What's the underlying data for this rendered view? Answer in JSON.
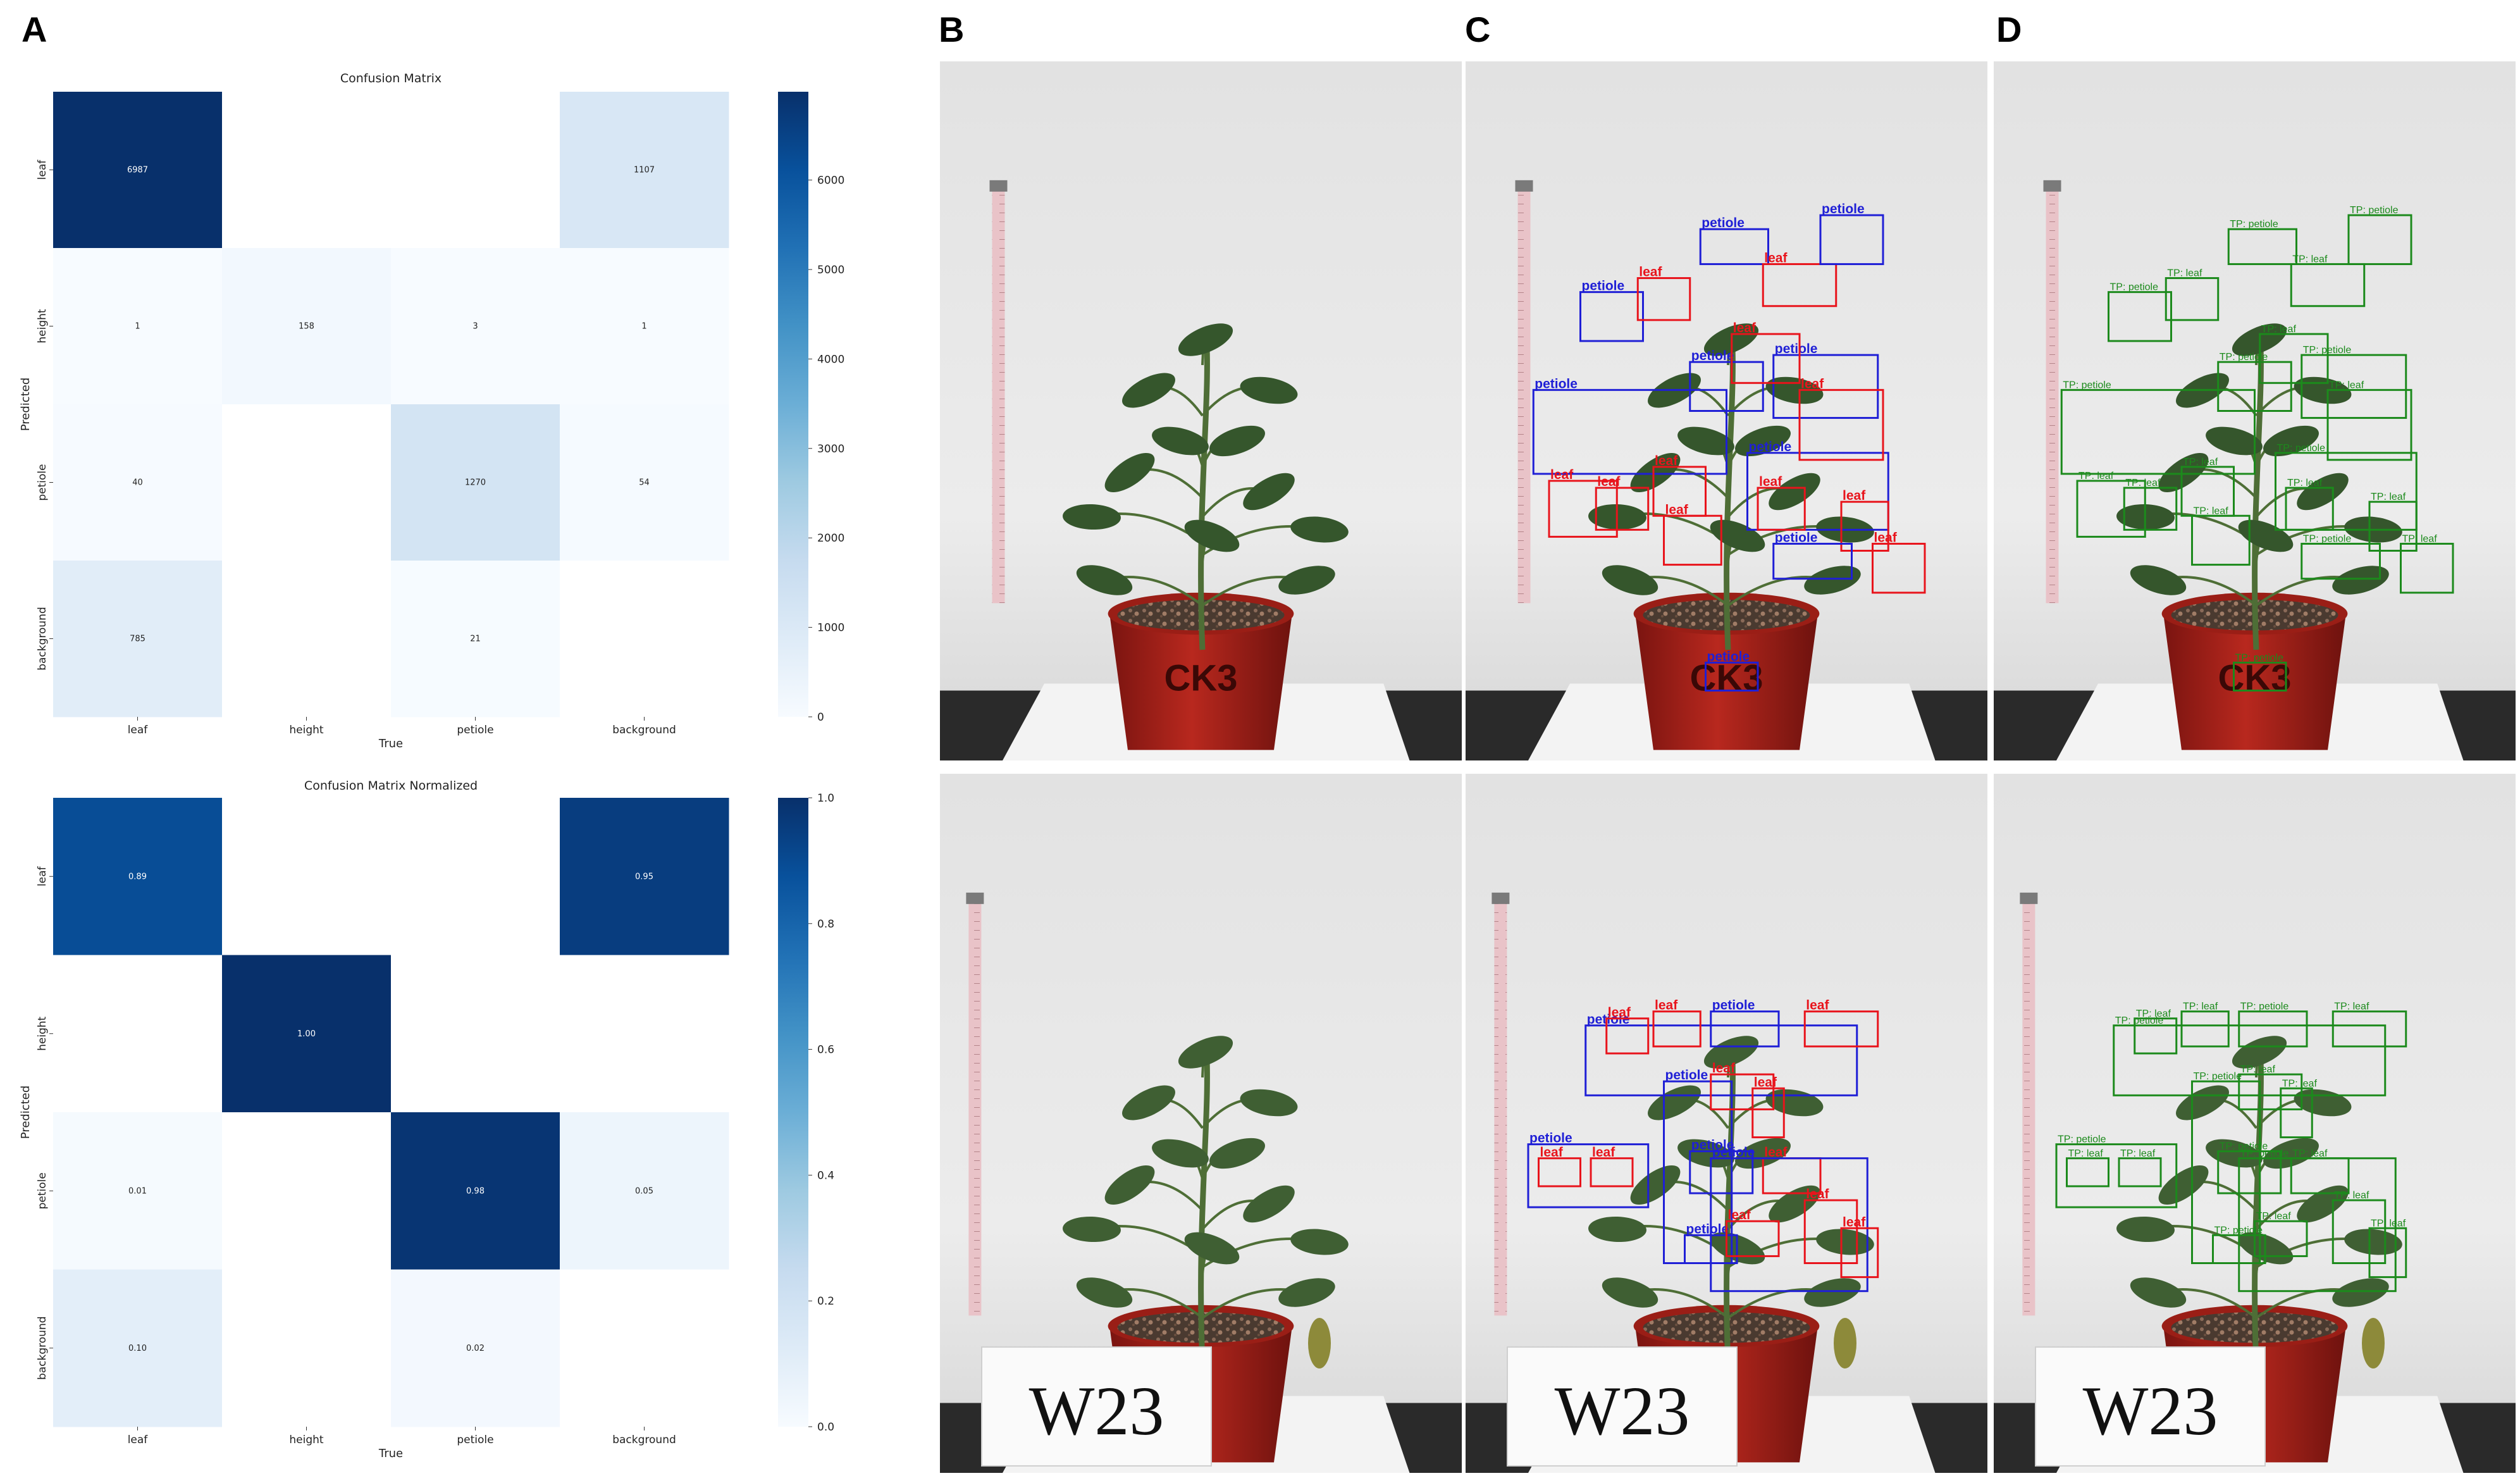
{
  "panels": {
    "a": "A",
    "b": "B",
    "c": "C",
    "d": "D"
  },
  "colors": {
    "cmap_low": "#f7fbff",
    "cmap_mid": "#6baed6",
    "cmap_high": "#08306b",
    "pred_leaf": "#e8141c",
    "pred_petiole": "#1f1fd6",
    "true_positive": "#1c8a1c"
  },
  "chart_data": [
    {
      "type": "heatmap",
      "title": "Confusion Matrix",
      "xlabel": "True",
      "ylabel": "Predicted",
      "x_categories": [
        "leaf",
        "height",
        "petiole",
        "background"
      ],
      "y_categories": [
        "leaf",
        "height",
        "petiole",
        "background"
      ],
      "values": [
        [
          6987,
          null,
          null,
          1107
        ],
        [
          1,
          158,
          3,
          1
        ],
        [
          40,
          null,
          1270,
          54
        ],
        [
          785,
          null,
          21,
          null
        ]
      ],
      "labels": [
        [
          "6987",
          "",
          "",
          "1107"
        ],
        [
          "1",
          "158",
          "3",
          "1"
        ],
        [
          "40",
          "",
          "1270",
          "54"
        ],
        [
          "785",
          "",
          "21",
          ""
        ]
      ],
      "vmin": 0,
      "vmax": 6987,
      "colorbar_ticks": [
        0,
        1000,
        2000,
        3000,
        4000,
        5000,
        6000
      ],
      "colorbar_tick_labels": [
        "0",
        "1000",
        "2000",
        "3000",
        "4000",
        "5000",
        "6000"
      ],
      "colormap": "Blues"
    },
    {
      "type": "heatmap",
      "title": "Confusion Matrix Normalized",
      "xlabel": "True",
      "ylabel": "Predicted",
      "x_categories": [
        "leaf",
        "height",
        "petiole",
        "background"
      ],
      "y_categories": [
        "leaf",
        "height",
        "petiole",
        "background"
      ],
      "values": [
        [
          0.89,
          null,
          null,
          0.95
        ],
        [
          null,
          1.0,
          null,
          null
        ],
        [
          0.01,
          null,
          0.98,
          0.05
        ],
        [
          0.1,
          null,
          0.02,
          null
        ]
      ],
      "labels": [
        [
          "0.89",
          "",
          "",
          "0.95"
        ],
        [
          "",
          "1.00",
          "",
          ""
        ],
        [
          "0.01",
          "",
          "0.98",
          "0.05"
        ],
        [
          "0.10",
          "",
          "0.02",
          ""
        ]
      ],
      "vmin": 0,
      "vmax": 1.0,
      "colorbar_ticks": [
        0,
        0.2,
        0.4,
        0.6,
        0.8,
        1.0
      ],
      "colorbar_tick_labels": [
        "0.0",
        "0.2",
        "0.4",
        "0.6",
        "0.8",
        "1.0"
      ],
      "colormap": "Blues"
    }
  ],
  "photos": {
    "pot_labels": [
      "CK3",
      "W23"
    ],
    "class_names": {
      "leaf": "leaf",
      "petiole": "petiole"
    },
    "tp_prefix": "TP: "
  }
}
